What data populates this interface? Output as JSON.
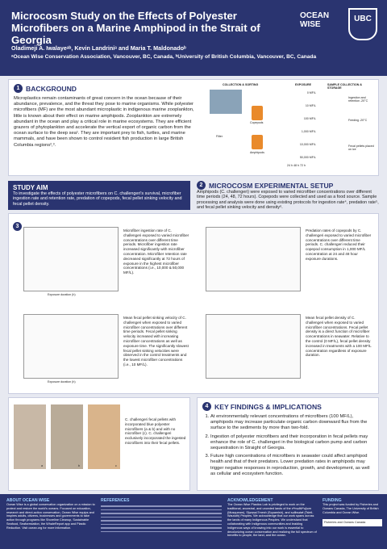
{
  "header": {
    "title": "Microcosm Study on the Effects of Polyester Microfibers on a Marine Amphipod in the Strait of Georgia",
    "authors": "Oladimeji A. Iwalayeᵃᵇ, Kevin Landriniᵃ and Maria T. Maldonadoᵇ",
    "affiliations": "ᵃOcean Wise Conservation Association, Vancouver, BC, Canada, ᵇUniversity of British Columbia, Vancouver, BC, Canada",
    "logo_left": "OCEAN WISE",
    "logo_right": "UBC"
  },
  "background": {
    "number": "1",
    "heading": "BACKGROUND",
    "text": "Microplastics remain contaminants of great concern in the ocean because of their abundance, prevalence, and the threat they pose to marine organisms. While polyester microfibers (MF) are the most abundant microplastic in indigenous marine zooplankton, little is known about their effect on marine amphipods. Zooplankton are extremely abundant in the ocean and play a critical role in marine ecosystems. They are efficient grazers of phytoplankton and accelerate the vertical export of organic carbon from the ocean surface to the deep sea¹. They are important prey to fish, turtles, and marine mammals, and have been shown to control resident fish production in large British Columbia regions²,³.",
    "figure": {
      "collection": "COLLECTION & SORTING",
      "exposure": "EXPOSURE",
      "storage": "SAMPLE COLLECTION & STORAGE",
      "copepods": "Copepods",
      "amphipods": "Amphipods",
      "filter": "Filter",
      "concentrations": [
        "0 MF/L",
        "10 MF/L",
        "100 MF/L",
        "1,000 MF/L",
        "10,000 MF/L",
        "50,000 MF/L"
      ],
      "durations": "24 h 48 h 72 h",
      "notes": [
        "Ingestion and retention -20°C",
        "Feeding -20°C",
        "Fecal pellets placed on ice"
      ]
    }
  },
  "aim": {
    "heading": "STUDY AIM",
    "text": "To investigate the effects of polyester microfibers on C. challengeri's survival, microfiber ingestion rate and retention rate, predation of copepods, fecal pellet sinking velocity and fecal pellet density."
  },
  "setup": {
    "number": "2",
    "heading": "MICROCOSM EXPERIMENTAL SETUP",
    "text": "Amphipods (C. challengeri) were exposed to varied microfiber concentrations over different time periods (24, 48, 72 hours). Copepods were collected and used as a food source. Sample processing and analysis were done using existing protocols for ingestion rate⁴, predation rate⁵, and fecal pellet sinking velocity and density⁶."
  },
  "results": {
    "number": "3",
    "captions": [
      "Microfiber ingestion rate of C. challengeri exposed to varied microfiber concentrations over different time periods. Microfiber ingestion rate increased significantly with microfiber concentration. Microfiber retention rate decreased significantly at 72 hours of exposure in the highest microfiber concentrations (i.e., 10,000 & 50,000 MF/L).",
      "Predation rates of copepods by C. challengeri exposed to varied microfiber concentrations over different time periods. C. challengeri reduced their copepod consumption in 1,000 MF/L concentration at 24 and 48 hour exposure durations.",
      "Mean fecal pellet sinking velocity of C. challengeri when exposed to varied microfiber concentrations over different time periods. Fecal pellet sinking velocity increased with increasing microfiber concentrations as well as exposure time. The significantly slowest fecal pellet sinking velocities were observed in the control treatments and the lowest microfiber concentrations (i.e., 10 MF/L).",
      "Mean fecal pellet density of C. challengeri when exposed to varied microfiber concentrations. Fecal pellet density is a direct function of microfiber concentrations in seawater. Relative to the control (0 MF/L), fecal pellet density increased in treatments with a 100 MF/L concentration regardless of exposure duration."
    ],
    "x_label": "Exposure duration (h)"
  },
  "images": {
    "caption": "C. challengeri fecal pellets with incorporated blue polyester microfibers (a & b) and with no microfiber (c). C. challengeri exclusively incorporated the ingested microfibers into their fecal pellets.",
    "labels": [
      "a",
      "b",
      "c"
    ]
  },
  "findings": {
    "number": "4",
    "heading": "KEY FINDINGS & IMPLICATIONS",
    "items": [
      "At environmentally relevant concentrations of microfibers (100 MF/L), amphipods may increase particulate organic carbon downward flux from the surface to the sediments by more than two-fold.",
      "Ingestion of polyester microfibers and their incorporation in fecal pellets may enhance the role of C. challengeri in the biological carbon pump and carbon sequestration in Straight of Georgia.",
      "Future high concentrations of microfibers in seawater could affect amphipod health and that of their predators. Lower predation rates in amphipods may trigger negative responses in reproduction, growth, and development, as well as cellular and ecosystem function."
    ]
  },
  "footer": {
    "about_heading": "ABOUT OCEAN WISE",
    "about_text": "Ocean Wise is a global conservation organization on a mission to protect and restore the world's oceans. Focused on education, research and direct-action conservation, Ocean Wise equips and inspires adults, citizens, businesses and governments to take action through programs like Shoreline Cleanup, Sustainable Seafood, Seaforestation, the WhaleReport app and Plastic Reduction. Visit ocean.org for more information.",
    "ref_heading": "REFERENCES",
    "ack_heading": "ACKNOWLEDGEMENT",
    "ack_text": "The Ocean Wise Plastics Lab is privileged to work on the traditional, ancestral, and unceded lands of the xʷməθkʷəy̓əm (Musqueam), Sḵwx̱wú7mesh (Squamish), and səlilwətaɬ (Tsleil-Waututh) Peoples. We acknowledge that our work spans across the lands of many Indigenous Peoples. We understand that collaborating with Indigenous communities and braiding Indigenous ways of knowing into our work is essential to decolonizing ocean conservation and realizing the full spectrum of benefits to people, the land, and the ocean.",
    "fund_heading": "FUNDING",
    "fund_text": "This project was funded by Fisheries and Oceans Canada, The University of British Columbia and Ocean Wise.",
    "fund_logo": "Fisheries and Oceans Canada"
  }
}
